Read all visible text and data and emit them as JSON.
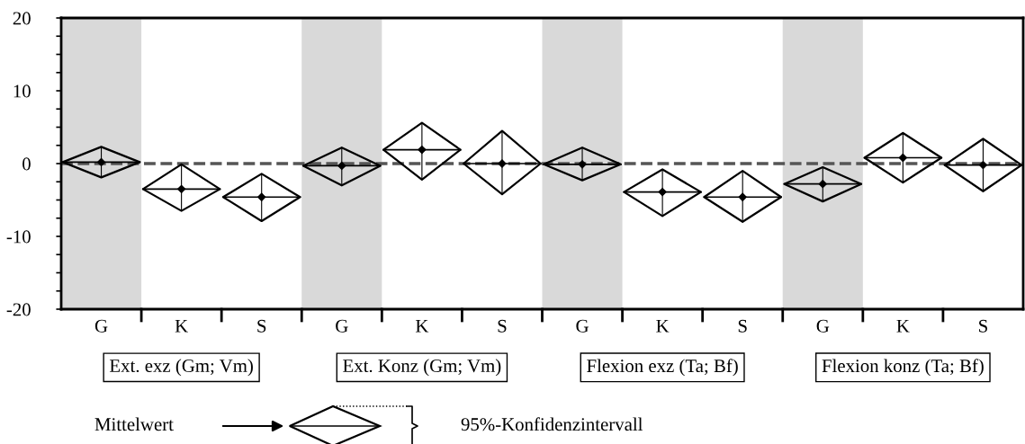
{
  "chart_data": {
    "type": "scatter",
    "categories": [
      "G",
      "K",
      "S",
      "G",
      "K",
      "S",
      "G",
      "K",
      "S",
      "G",
      "K",
      "S"
    ],
    "values": [
      0.2,
      -3.5,
      -4.6,
      -0.3,
      1.9,
      0.0,
      -0.1,
      -3.9,
      -4.6,
      -2.8,
      0.8,
      -0.2
    ],
    "errors": [
      [
        -1.9,
        2.3
      ],
      [
        -6.5,
        -0.1
      ],
      [
        -7.9,
        -1.4
      ],
      [
        -3.0,
        2.2
      ],
      [
        -2.2,
        5.6
      ],
      [
        -4.2,
        4.5
      ],
      [
        -2.3,
        2.2
      ],
      [
        -7.2,
        -0.8
      ],
      [
        -8.0,
        -1.0
      ],
      [
        -5.2,
        -0.5
      ],
      [
        -2.6,
        4.2
      ],
      [
        -3.8,
        3.4
      ]
    ],
    "color": "#000000",
    "marker": "diamond",
    "ylim": [
      -20,
      20
    ],
    "yticks": [
      -20,
      {
        "value": -17.5,
        "label": null
      },
      {
        "value": -15,
        "label": null
      },
      {
        "value": -12.5,
        "label": null
      },
      -10,
      {
        "value": -7.5,
        "label": null
      },
      {
        "value": -5,
        "label": null
      },
      {
        "value": -2.5,
        "label": null
      },
      0,
      {
        "value": 2.5,
        "label": null
      },
      {
        "value": 5,
        "label": null
      },
      {
        "value": 7.5,
        "label": null
      },
      10,
      {
        "value": 12.5,
        "label": null
      },
      {
        "value": 15,
        "label": null
      },
      {
        "value": 17.5,
        "label": null
      },
      20
    ],
    "ref_lines": [
      {
        "axis": "y",
        "value": 0,
        "color": "#555555",
        "line_style": "dashed"
      }
    ],
    "grid": false,
    "annotations": [
      "Ext. exz (Gm; Vm)",
      "Ext. Konz (Gm; Vm)",
      "Flexion exz (Ta; Bf)",
      "Flexion konz (Ta; Bf)",
      "Mittelwert",
      "95%-Konfidenzintervall"
    ]
  }
}
